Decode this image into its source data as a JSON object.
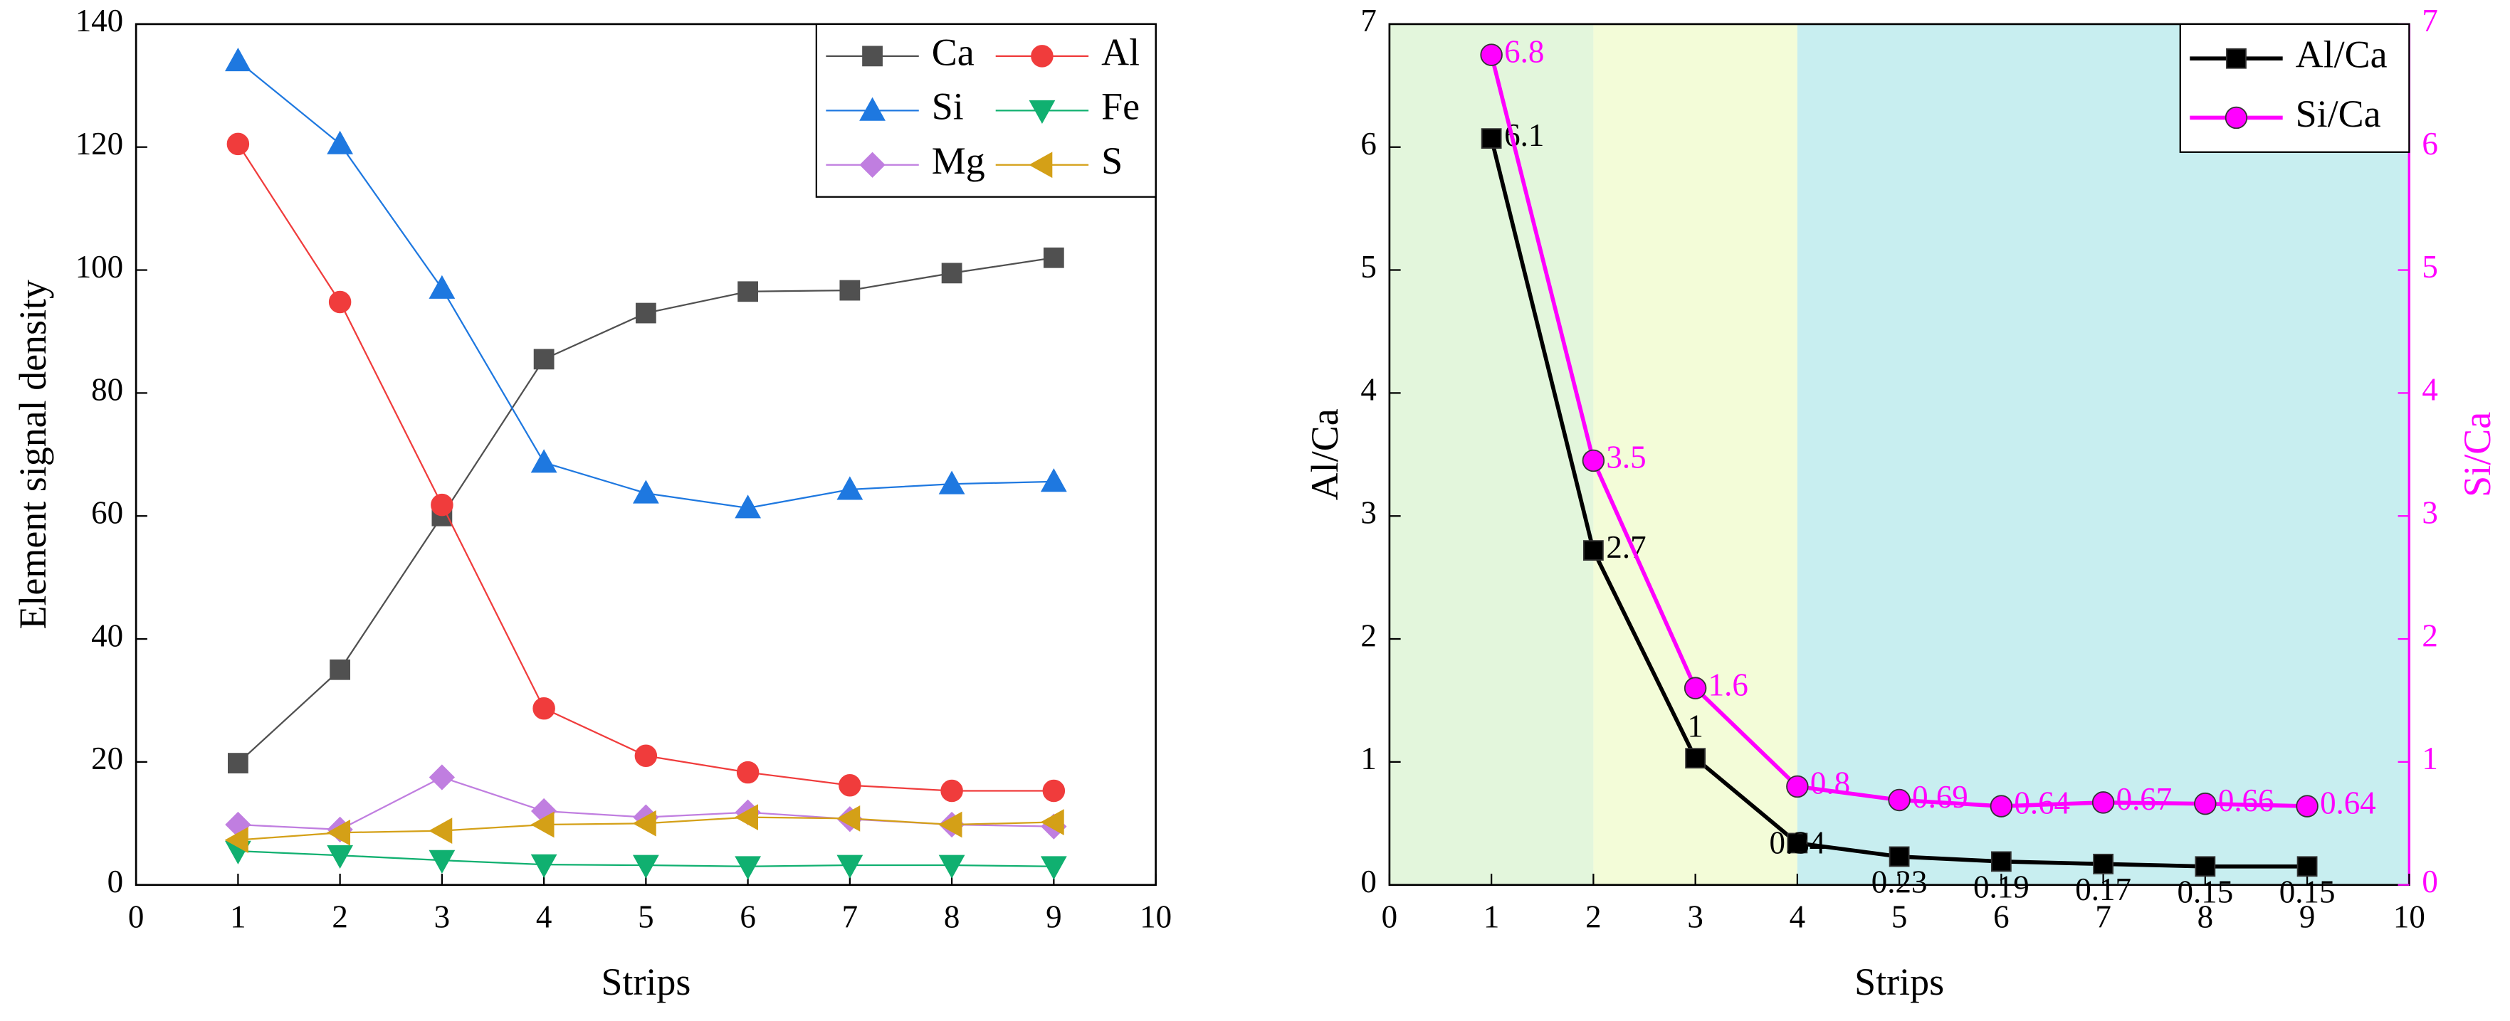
{
  "chart_data": [
    {
      "type": "line",
      "x_label": "Strips",
      "y_label": "Element signal density",
      "x": [
        1,
        2,
        3,
        4,
        5,
        6,
        7,
        8,
        9
      ],
      "xlim": [
        0,
        10
      ],
      "xticks": [
        0,
        1,
        2,
        3,
        4,
        5,
        6,
        7,
        8,
        9,
        10
      ],
      "ylim": [
        0,
        140
      ],
      "yticks": [
        0,
        20,
        40,
        60,
        80,
        100,
        120,
        140
      ],
      "legend": "upper right",
      "legend_columns": 2,
      "series": [
        {
          "name": "Ca",
          "color": "#505050",
          "marker": "square",
          "values": [
            19.8,
            35,
            60,
            85.5,
            93,
            96.5,
            96.7,
            99.5,
            102
          ]
        },
        {
          "name": "Al",
          "color": "#f03c3c",
          "marker": "circle",
          "values": [
            120.5,
            94.8,
            61.8,
            28.7,
            21,
            18.3,
            16.2,
            15.3,
            15.3
          ]
        },
        {
          "name": "Si",
          "color": "#1e78e0",
          "marker": "triangle-up",
          "values": [
            134,
            120.5,
            97,
            68.7,
            63.7,
            61.3,
            64.3,
            65.2,
            65.6
          ]
        },
        {
          "name": "Fe",
          "color": "#10b070",
          "marker": "triangle-down",
          "values": [
            5.5,
            4.8,
            4,
            3.3,
            3.2,
            3,
            3.2,
            3.2,
            3
          ]
        },
        {
          "name": "Mg",
          "color": "#c07ee0",
          "marker": "diamond",
          "values": [
            9.8,
            9,
            17.5,
            12,
            11,
            11.8,
            10.7,
            9.8,
            9.5
          ]
        },
        {
          "name": "S",
          "color": "#d4a017",
          "marker": "triangle-left",
          "values": [
            7.3,
            8.5,
            8.8,
            9.8,
            10,
            11,
            10.8,
            9.8,
            10.2
          ]
        }
      ]
    },
    {
      "type": "line",
      "x_label": "Strips",
      "y_label": "Al/Ca",
      "y2_label": "Si/Ca",
      "y2_color": "#ff00ff",
      "x": [
        1,
        2,
        3,
        4,
        5,
        6,
        7,
        8,
        9
      ],
      "xlim": [
        0,
        10
      ],
      "xticks": [
        0,
        1,
        2,
        3,
        4,
        5,
        6,
        7,
        8,
        9,
        10
      ],
      "ylim": [
        0,
        7
      ],
      "yticks": [
        0,
        1,
        2,
        3,
        4,
        5,
        6,
        7
      ],
      "y2lim": [
        0,
        7
      ],
      "y2ticks": [
        0,
        1,
        2,
        3,
        4,
        5,
        6,
        7
      ],
      "legend": "upper right",
      "legend_columns": 1,
      "regions": [
        {
          "xlim": [
            0,
            2
          ],
          "color": "#e3f6dc"
        },
        {
          "xlim": [
            2,
            4
          ],
          "color": "#f3fcd8"
        },
        {
          "xlim": [
            4,
            10
          ],
          "color": "#c8eef0"
        }
      ],
      "series": [
        {
          "name": "Al/Ca",
          "color": "#000000",
          "marker": "square",
          "values": [
            6.07,
            2.72,
            1.03,
            0.34,
            0.23,
            0.19,
            0.17,
            0.15,
            0.15
          ],
          "value_labels": [
            "6.1",
            "2.7",
            "1",
            "0.34",
            "0.23",
            "0.19",
            "0.17",
            "0.15",
            "0.15"
          ]
        },
        {
          "name": "Si/Ca",
          "color": "#ff00ff",
          "marker": "circle",
          "axis": "y2",
          "values": [
            6.75,
            3.45,
            1.6,
            0.8,
            0.69,
            0.64,
            0.67,
            0.66,
            0.64
          ],
          "value_labels": [
            "6.8",
            "3.5",
            "1.6",
            "0.8",
            "0.69",
            "0.64",
            "0.67",
            "0.66",
            "0.64"
          ]
        }
      ]
    }
  ]
}
